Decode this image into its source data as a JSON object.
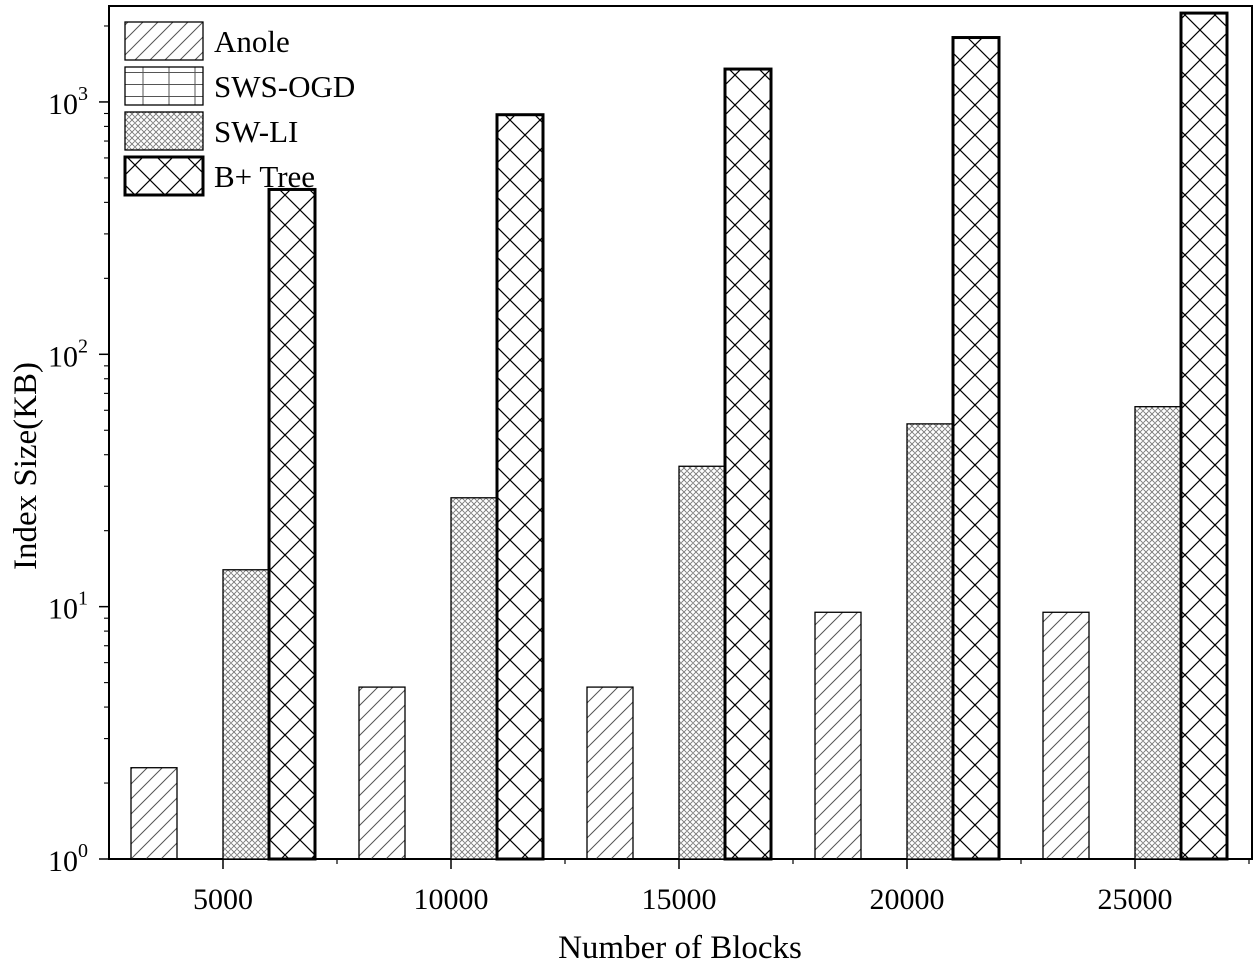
{
  "chart_data": {
    "type": "bar",
    "title": "",
    "xlabel": "Number of Blocks",
    "ylabel": "Index Size(KB)",
    "yscale": "log",
    "ylim": [
      1,
      2400
    ],
    "y_ticks": [
      {
        "base": "10",
        "exp": "0"
      },
      {
        "base": "10",
        "exp": "1"
      },
      {
        "base": "10",
        "exp": "2"
      },
      {
        "base": "10",
        "exp": "3"
      }
    ],
    "categories": [
      "5000",
      "10000",
      "15000",
      "20000",
      "25000"
    ],
    "legend_position": "top-left",
    "series": [
      {
        "name": "Anole",
        "pattern": "diagonal",
        "values": [
          2.3,
          4.8,
          4.8,
          9.5,
          9.5
        ]
      },
      {
        "name": "SWS-OGD",
        "pattern": "grid",
        "values": [
          null,
          null,
          null,
          null,
          null
        ]
      },
      {
        "name": "SW-LI",
        "pattern": "brick",
        "values": [
          14,
          27,
          36,
          53,
          62
        ]
      },
      {
        "name": "B+ Tree",
        "pattern": "crosshatch",
        "values": [
          450,
          890,
          1350,
          1800,
          2250
        ]
      }
    ]
  }
}
